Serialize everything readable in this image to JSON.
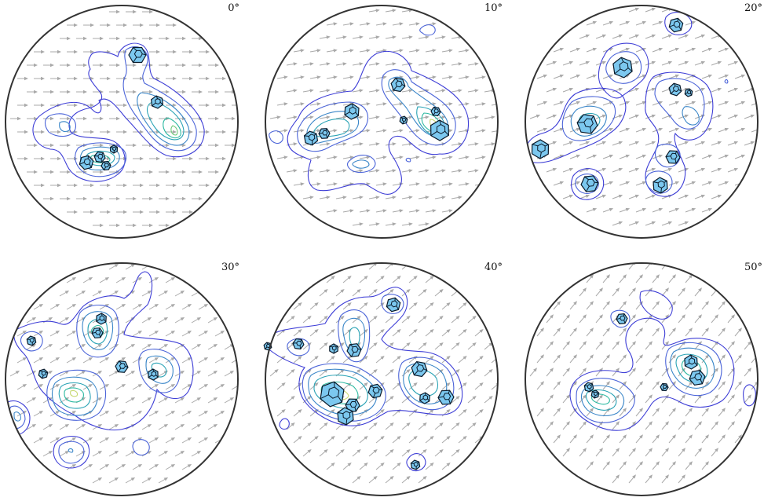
{
  "panels": [
    {
      "id": "p0",
      "label": "0°",
      "arrow_angle": 0
    },
    {
      "id": "p10",
      "label": "10°",
      "arrow_angle": -10
    },
    {
      "id": "p20",
      "label": "20°",
      "arrow_angle": -20
    },
    {
      "id": "p30",
      "label": "30°",
      "arrow_angle": -30
    },
    {
      "id": "p40",
      "label": "40°",
      "arrow_angle": -40
    },
    {
      "id": "p50",
      "label": "50°",
      "arrow_angle": -50
    }
  ],
  "colors": {
    "rim": "#333333",
    "arrow": "#a9a9a9",
    "crystal_fill": "#7cc8ef",
    "crystal_edge": "#0a1a2a",
    "contour_levels": [
      "#3d3dd6",
      "#4a63d8",
      "#3a86c8",
      "#2aa3b5",
      "#2ab8a0",
      "#6cc878",
      "#c8d870"
    ]
  },
  "icons": {
    "crystal": "hexagonal-crystal-icon",
    "flow": "flow-arrow-icon"
  }
}
